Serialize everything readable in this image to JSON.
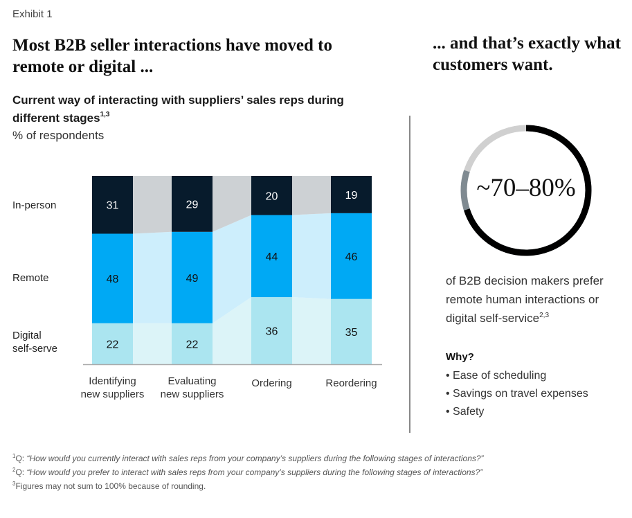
{
  "exhibit_label": "Exhibit 1",
  "headline_left": "Most B2B seller interactions have moved to remote or digital ...",
  "headline_right": "... and that’s exactly what customers want.",
  "subtitle": "Current way of interacting with suppliers’ sales reps during different stages",
  "subtitle_sup": "1,3",
  "unit": "% of respondents",
  "colors": {
    "in_person": "#071b2c",
    "remote": "#00a9f4",
    "digital": "#abe5f0",
    "band_in_person": "#cdd1d4",
    "band_remote": "#cdeefc",
    "band_digital": "#dcf4f8",
    "axis": "#aaaaaa",
    "ring_black": "#000000",
    "ring_grey": "#7f8a91",
    "ring_light": "#d0d0d0"
  },
  "chart_data": {
    "type": "bar",
    "stacked": true,
    "title": "Current way of interacting with suppliers’ sales reps during different stages",
    "ylabel": "% of respondents",
    "xlabel": "",
    "ylim": [
      0,
      101
    ],
    "categories": [
      "Identifying new suppliers",
      "Evaluating new suppliers",
      "Ordering",
      "Reordering"
    ],
    "category_lines": [
      [
        "Identifying",
        "new suppliers"
      ],
      [
        "Evaluating",
        "new suppliers"
      ],
      [
        "Ordering"
      ],
      [
        "Reordering"
      ]
    ],
    "series": [
      {
        "name": "Digital self-serve",
        "key": "digital",
        "values": [
          22,
          22,
          36,
          35
        ]
      },
      {
        "name": "Remote",
        "key": "remote",
        "values": [
          48,
          49,
          44,
          46
        ]
      },
      {
        "name": "In-person",
        "key": "in_person",
        "values": [
          31,
          29,
          20,
          19
        ]
      }
    ],
    "legend": "left",
    "grid": false,
    "connector_bands": true
  },
  "row_labels": {
    "in_person": "In-person",
    "remote": "Remote",
    "digital_line1": "Digital",
    "digital_line2": "self-serve"
  },
  "ring": {
    "label": "~70–80%",
    "segments_percent": {
      "black_low": 70,
      "black_high": 80,
      "light_remainder": 20
    }
  },
  "preference_text": "of B2B decision makers prefer remote human interactions or digital self-service",
  "preference_sup": "2,3",
  "why": {
    "title": "Why?",
    "items": [
      "Ease of scheduling",
      "Savings on travel expenses",
      "Safety"
    ]
  },
  "footnotes": [
    {
      "sup": "1",
      "prefix": "Q: ",
      "text": "“How would you currently interact with sales reps from your company’s suppliers during the following stages of interactions?”"
    },
    {
      "sup": "2",
      "prefix": "Q: ",
      "text": "“How would you prefer to interact with sales reps from your company’s suppliers during the following stages of interactions?”"
    },
    {
      "sup": "3",
      "prefix": "",
      "text": "Figures may not sum to 100% because of rounding."
    }
  ]
}
